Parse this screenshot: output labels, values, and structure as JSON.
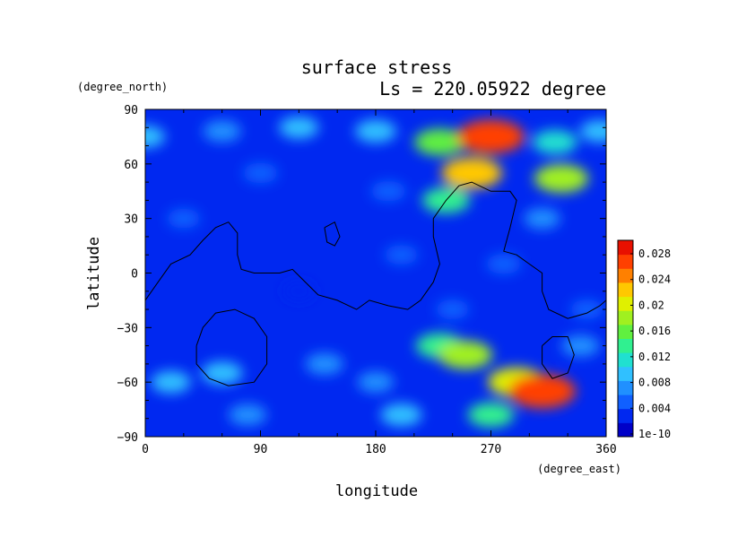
{
  "chart_data": {
    "type": "heatmap",
    "title": "surface stress",
    "subtitle": "Ls = 220.05922 degree",
    "xlabel": "longitude",
    "ylabel": "latitude",
    "xunit": "(degree_east)",
    "yunit": "(degree_north)",
    "xlim": [
      0,
      360
    ],
    "ylim": [
      -90,
      90
    ],
    "xticks": [
      "0",
      "90",
      "180",
      "270",
      "360"
    ],
    "yticks": [
      "90",
      "60",
      "30",
      "0",
      "−30",
      "−60",
      "−90"
    ],
    "colorbar": {
      "labels": [
        "0.028",
        "0.024",
        "0.02",
        "0.016",
        "0.012",
        "0.008",
        "0.004",
        "1e-10"
      ],
      "range": [
        0,
        0.03
      ],
      "colors": [
        "#0000c8",
        "#0028f0",
        "#1060ff",
        "#2090ff",
        "#30c0ff",
        "#20e0d0",
        "#30f090",
        "#60f040",
        "#a0f020",
        "#e0f000",
        "#ffc800",
        "#ff8000",
        "#ff4000",
        "#e81000"
      ]
    },
    "field_blobs": [
      {
        "lon": 0,
        "lat": 75,
        "value": 0.009
      },
      {
        "lon": 60,
        "lat": 78,
        "value": 0.008
      },
      {
        "lon": 120,
        "lat": 80,
        "value": 0.009
      },
      {
        "lon": 180,
        "lat": 78,
        "value": 0.01
      },
      {
        "lon": 230,
        "lat": 72,
        "value": 0.016
      },
      {
        "lon": 270,
        "lat": 75,
        "value": 0.026
      },
      {
        "lon": 320,
        "lat": 72,
        "value": 0.012
      },
      {
        "lon": 355,
        "lat": 78,
        "value": 0.009
      },
      {
        "lon": 255,
        "lat": 55,
        "value": 0.022
      },
      {
        "lon": 235,
        "lat": 40,
        "value": 0.014
      },
      {
        "lon": 325,
        "lat": 52,
        "value": 0.018
      },
      {
        "lon": 90,
        "lat": 55,
        "value": 0.006
      },
      {
        "lon": 190,
        "lat": 45,
        "value": 0.006
      },
      {
        "lon": 30,
        "lat": 30,
        "value": 0.005
      },
      {
        "lon": 310,
        "lat": 30,
        "value": 0.007
      },
      {
        "lon": 200,
        "lat": 10,
        "value": 0.005
      },
      {
        "lon": 280,
        "lat": 5,
        "value": 0.006
      },
      {
        "lon": 120,
        "lat": -10,
        "value": 0.004
      },
      {
        "lon": 240,
        "lat": -20,
        "value": 0.005
      },
      {
        "lon": 345,
        "lat": -20,
        "value": 0.005
      },
      {
        "lon": 250,
        "lat": -45,
        "value": 0.018
      },
      {
        "lon": 230,
        "lat": -40,
        "value": 0.014
      },
      {
        "lon": 290,
        "lat": -60,
        "value": 0.02
      },
      {
        "lon": 310,
        "lat": -65,
        "value": 0.026
      },
      {
        "lon": 60,
        "lat": -55,
        "value": 0.01
      },
      {
        "lon": 20,
        "lat": -60,
        "value": 0.009
      },
      {
        "lon": 140,
        "lat": -50,
        "value": 0.008
      },
      {
        "lon": 180,
        "lat": -60,
        "value": 0.007
      },
      {
        "lon": 340,
        "lat": -40,
        "value": 0.008
      },
      {
        "lon": 270,
        "lat": -78,
        "value": 0.013
      },
      {
        "lon": 200,
        "lat": -78,
        "value": 0.01
      },
      {
        "lon": 80,
        "lat": -78,
        "value": 0.008
      }
    ],
    "contours": [
      [
        [
          0,
          -15
        ],
        [
          10,
          -5
        ],
        [
          20,
          5
        ],
        [
          35,
          10
        ],
        [
          45,
          18
        ],
        [
          55,
          25
        ],
        [
          65,
          28
        ],
        [
          72,
          22
        ],
        [
          72,
          10
        ],
        [
          75,
          2
        ],
        [
          85,
          0
        ],
        [
          105,
          0
        ],
        [
          115,
          2
        ],
        [
          125,
          -5
        ],
        [
          135,
          -12
        ],
        [
          150,
          -15
        ],
        [
          165,
          -20
        ],
        [
          175,
          -15
        ],
        [
          190,
          -18
        ],
        [
          205,
          -20
        ],
        [
          215,
          -15
        ],
        [
          225,
          -5
        ],
        [
          230,
          5
        ],
        [
          225,
          20
        ],
        [
          225,
          30
        ],
        [
          235,
          40
        ],
        [
          245,
          48
        ],
        [
          255,
          50
        ],
        [
          270,
          45
        ],
        [
          285,
          45
        ],
        [
          290,
          40
        ],
        [
          285,
          25
        ],
        [
          280,
          12
        ],
        [
          290,
          10
        ],
        [
          300,
          5
        ],
        [
          310,
          0
        ],
        [
          310,
          -10
        ],
        [
          315,
          -20
        ],
        [
          330,
          -25
        ],
        [
          345,
          -22
        ],
        [
          355,
          -18
        ],
        [
          360,
          -15
        ]
      ],
      [
        [
          140,
          25
        ],
        [
          148,
          28
        ],
        [
          152,
          20
        ],
        [
          148,
          15
        ],
        [
          142,
          17
        ],
        [
          140,
          25
        ]
      ],
      [
        [
          40,
          -40
        ],
        [
          45,
          -30
        ],
        [
          55,
          -22
        ],
        [
          70,
          -20
        ],
        [
          85,
          -25
        ],
        [
          95,
          -35
        ],
        [
          95,
          -50
        ],
        [
          85,
          -60
        ],
        [
          65,
          -62
        ],
        [
          50,
          -58
        ],
        [
          40,
          -50
        ],
        [
          40,
          -40
        ]
      ],
      [
        [
          310,
          -40
        ],
        [
          318,
          -35
        ],
        [
          330,
          -35
        ],
        [
          335,
          -45
        ],
        [
          330,
          -55
        ],
        [
          318,
          -58
        ],
        [
          310,
          -50
        ],
        [
          310,
          -40
        ]
      ]
    ]
  }
}
